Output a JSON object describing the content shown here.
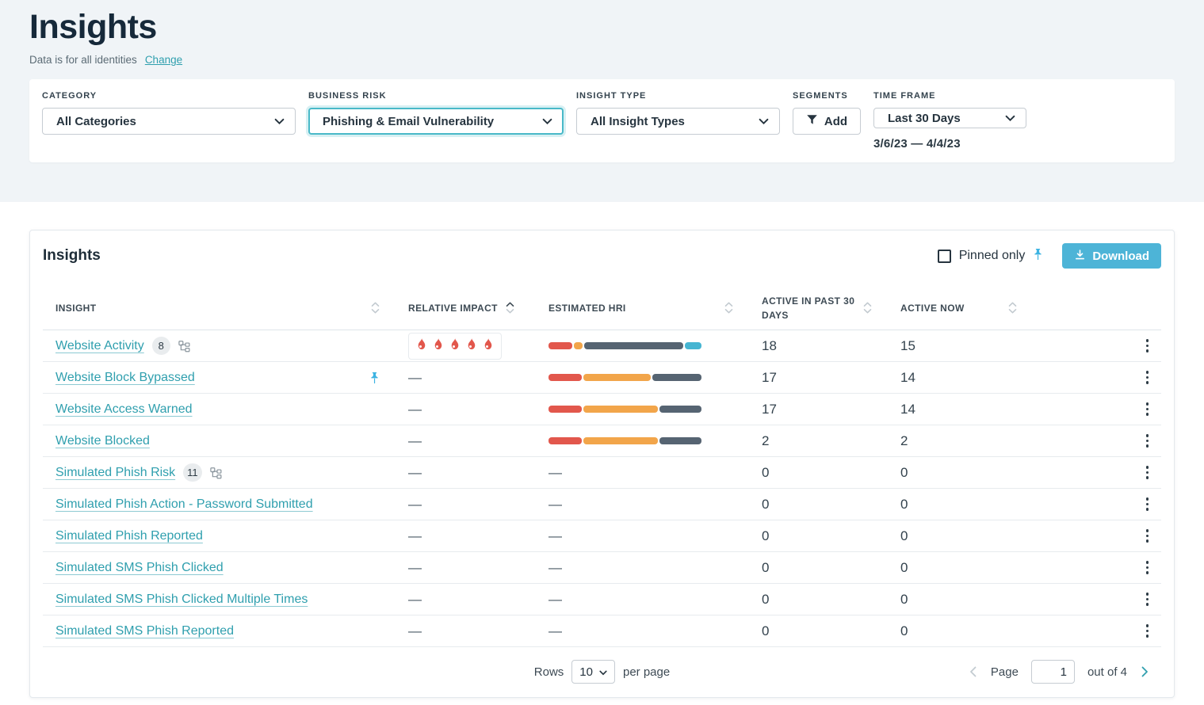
{
  "header": {
    "title": "Insights",
    "subtitle": "Data is for all identities",
    "change": "Change"
  },
  "filters": {
    "category": {
      "label": "CATEGORY",
      "value": "All Categories"
    },
    "business_risk": {
      "label": "BUSINESS RISK",
      "value": "Phishing & Email Vulnerability"
    },
    "insight_type": {
      "label": "INSIGHT TYPE",
      "value": "All Insight Types"
    },
    "segments": {
      "label": "SEGMENTS",
      "button": "Add"
    },
    "time_frame": {
      "label": "TIME FRAME",
      "value": "Last 30 Days",
      "range": "3/6/23 — 4/4/23"
    }
  },
  "panel": {
    "title": "Insights",
    "pinned_only": "Pinned only",
    "download": "Download"
  },
  "table": {
    "columns": [
      "INSIGHT",
      "RELATIVE IMPACT",
      "ESTIMATED HRI",
      "ACTIVE IN PAST 30 DAYS",
      "ACTIVE NOW"
    ],
    "sorted_column": "RELATIVE IMPACT",
    "rows": [
      {
        "insight": "Website Activity",
        "badge": "8",
        "tree_icon": true,
        "pinned": false,
        "impact_flames": 5,
        "hri_bar": [
          {
            "color": "bar_red",
            "pct": 16
          },
          {
            "color": "bar_orange",
            "pct": 6
          },
          {
            "color": "bar_gray",
            "pct": 67
          },
          {
            "color": "bar_blue",
            "pct": 11
          }
        ],
        "active_past_30": "18",
        "active_now": "15"
      },
      {
        "insight": "Website Block Bypassed",
        "pinned": true,
        "impact": "—",
        "hri_bar": [
          {
            "color": "bar_red",
            "pct": 22
          },
          {
            "color": "bar_orange",
            "pct": 45
          },
          {
            "color": "bar_gray",
            "pct": 33
          }
        ],
        "active_past_30": "17",
        "active_now": "14"
      },
      {
        "insight": "Website Access Warned",
        "impact": "—",
        "hri_bar": [
          {
            "color": "bar_red",
            "pct": 22
          },
          {
            "color": "bar_orange",
            "pct": 50
          },
          {
            "color": "bar_gray",
            "pct": 28
          }
        ],
        "active_past_30": "17",
        "active_now": "14"
      },
      {
        "insight": "Website Blocked",
        "impact": "—",
        "hri_bar": [
          {
            "color": "bar_red",
            "pct": 22
          },
          {
            "color": "bar_orange",
            "pct": 50
          },
          {
            "color": "bar_gray",
            "pct": 28
          }
        ],
        "active_past_30": "2",
        "active_now": "2"
      },
      {
        "insight": "Simulated Phish Risk",
        "badge": "11",
        "tree_icon": true,
        "impact": "—",
        "hri": "—",
        "active_past_30": "0",
        "active_now": "0"
      },
      {
        "insight": "Simulated Phish Action - Password Submitted",
        "impact": "—",
        "hri": "—",
        "active_past_30": "0",
        "active_now": "0"
      },
      {
        "insight": "Simulated Phish Reported",
        "impact": "—",
        "hri": "—",
        "active_past_30": "0",
        "active_now": "0"
      },
      {
        "insight": "Simulated SMS Phish Clicked",
        "impact": "—",
        "hri": "—",
        "active_past_30": "0",
        "active_now": "0"
      },
      {
        "insight": "Simulated SMS Phish Clicked Multiple Times",
        "impact": "—",
        "hri": "—",
        "active_past_30": "0",
        "active_now": "0"
      },
      {
        "insight": "Simulated SMS Phish Reported",
        "impact": "—",
        "hri": "—",
        "active_past_30": "0",
        "active_now": "0"
      }
    ]
  },
  "footer": {
    "rows_label": "Rows",
    "rows_value": "10",
    "per_page": "per page",
    "page_label": "Page",
    "page_value": "1",
    "out_of": "out of 4"
  },
  "colors": {
    "accent_teal": "#2f9fae",
    "download_blue": "#4db4d7",
    "pin_blue": "#3cb3e2",
    "flame_red": "#e2574c",
    "bar_red": "#e2574c",
    "bar_orange": "#f2a54a",
    "bar_gray": "#566472",
    "bar_blue": "#46b5d2"
  }
}
